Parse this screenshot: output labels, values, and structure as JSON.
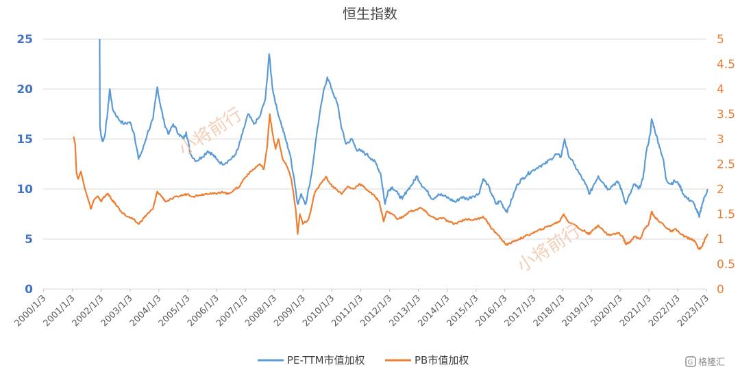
{
  "chart_data": {
    "type": "line",
    "title": "恒生指数",
    "x_ticks": [
      "2000/1/3",
      "2001/1/3",
      "2002/1/3",
      "2003/1/3",
      "2004/1/3",
      "2005/1/3",
      "2006/1/3",
      "2007/1/3",
      "2008/1/3",
      "2009/1/3",
      "2010/1/3",
      "2011/1/3",
      "2012/1/3",
      "2013/1/3",
      "2014/1/3",
      "2015/1/3",
      "2016/1/3",
      "2017/1/3",
      "2018/1/3",
      "2019/1/3",
      "2020/1/3",
      "2021/1/3",
      "2022/1/3",
      "2023/1/3"
    ],
    "y_left": {
      "ticks": [
        "0",
        "5",
        "10",
        "15",
        "20",
        "25"
      ],
      "range": [
        0,
        25
      ]
    },
    "y_right": {
      "ticks": [
        "0",
        "0.5",
        "1",
        "1.5",
        "2",
        "2.5",
        "3",
        "3.5",
        "4",
        "4.5",
        "5"
      ],
      "range": [
        0,
        5
      ]
    },
    "grid": "horizontal",
    "legend_position": "bottom",
    "series": [
      {
        "name": "PE-TTM市值加权",
        "axis": "left",
        "color": "#5b9bd5",
        "points": [
          [
            2001.95,
            25.0
          ],
          [
            2001.96,
            16.3
          ],
          [
            2002.0,
            15.3
          ],
          [
            2002.05,
            14.8
          ],
          [
            2002.12,
            15.2
          ],
          [
            2002.22,
            17.5
          ],
          [
            2002.3,
            20.0
          ],
          [
            2002.4,
            18.0
          ],
          [
            2002.6,
            17.0
          ],
          [
            2002.8,
            16.5
          ],
          [
            2003.0,
            16.7
          ],
          [
            2003.15,
            15.5
          ],
          [
            2003.3,
            13.0
          ],
          [
            2003.45,
            14.0
          ],
          [
            2003.6,
            15.5
          ],
          [
            2003.8,
            17.0
          ],
          [
            2003.95,
            20.2
          ],
          [
            2004.05,
            18.5
          ],
          [
            2004.2,
            16.5
          ],
          [
            2004.35,
            15.5
          ],
          [
            2004.5,
            16.5
          ],
          [
            2004.7,
            15.5
          ],
          [
            2004.85,
            15.0
          ],
          [
            2004.95,
            15.7
          ],
          [
            2005.1,
            13.5
          ],
          [
            2005.3,
            12.8
          ],
          [
            2005.5,
            13.2
          ],
          [
            2005.7,
            13.8
          ],
          [
            2005.85,
            13.5
          ],
          [
            2006.0,
            13.0
          ],
          [
            2006.2,
            12.5
          ],
          [
            2006.4,
            12.8
          ],
          [
            2006.6,
            13.2
          ],
          [
            2006.75,
            14.0
          ],
          [
            2006.9,
            15.5
          ],
          [
            2007.1,
            17.5
          ],
          [
            2007.3,
            16.5
          ],
          [
            2007.5,
            17.2
          ],
          [
            2007.7,
            19.0
          ],
          [
            2007.83,
            23.5
          ],
          [
            2007.95,
            20.0
          ],
          [
            2008.1,
            18.0
          ],
          [
            2008.25,
            16.5
          ],
          [
            2008.4,
            15.0
          ],
          [
            2008.55,
            13.5
          ],
          [
            2008.7,
            11.0
          ],
          [
            2008.82,
            8.5
          ],
          [
            2008.95,
            9.5
          ],
          [
            2009.1,
            8.5
          ],
          [
            2009.3,
            11.5
          ],
          [
            2009.5,
            16.0
          ],
          [
            2009.7,
            19.5
          ],
          [
            2009.85,
            21.2
          ],
          [
            2010.0,
            20.0
          ],
          [
            2010.2,
            18.5
          ],
          [
            2010.35,
            16.0
          ],
          [
            2010.5,
            14.5
          ],
          [
            2010.7,
            15.0
          ],
          [
            2010.85,
            14.0
          ],
          [
            2011.0,
            13.8
          ],
          [
            2011.2,
            13.5
          ],
          [
            2011.4,
            13.0
          ],
          [
            2011.55,
            12.5
          ],
          [
            2011.7,
            11.5
          ],
          [
            2011.85,
            8.5
          ],
          [
            2011.95,
            9.8
          ],
          [
            2012.1,
            10.2
          ],
          [
            2012.3,
            9.5
          ],
          [
            2012.45,
            9.0
          ],
          [
            2012.6,
            9.8
          ],
          [
            2012.8,
            10.5
          ],
          [
            2012.95,
            11.3
          ],
          [
            2013.1,
            10.5
          ],
          [
            2013.3,
            9.8
          ],
          [
            2013.5,
            9.0
          ],
          [
            2013.7,
            9.5
          ],
          [
            2013.9,
            9.3
          ],
          [
            2014.1,
            9.0
          ],
          [
            2014.3,
            8.7
          ],
          [
            2014.5,
            9.2
          ],
          [
            2014.7,
            9.0
          ],
          [
            2014.9,
            9.3
          ],
          [
            2015.1,
            9.5
          ],
          [
            2015.25,
            11.0
          ],
          [
            2015.4,
            10.5
          ],
          [
            2015.55,
            9.5
          ],
          [
            2015.7,
            8.5
          ],
          [
            2015.85,
            8.8
          ],
          [
            2016.0,
            8.0
          ],
          [
            2016.1,
            7.8
          ],
          [
            2016.25,
            9.0
          ],
          [
            2016.45,
            10.5
          ],
          [
            2016.6,
            11.0
          ],
          [
            2016.8,
            11.5
          ],
          [
            2016.95,
            11.8
          ],
          [
            2017.2,
            12.3
          ],
          [
            2017.4,
            12.5
          ],
          [
            2017.6,
            13.0
          ],
          [
            2017.8,
            13.5
          ],
          [
            2017.95,
            13.2
          ],
          [
            2018.08,
            15.0
          ],
          [
            2018.2,
            13.5
          ],
          [
            2018.4,
            12.5
          ],
          [
            2018.6,
            11.5
          ],
          [
            2018.8,
            10.5
          ],
          [
            2018.95,
            9.5
          ],
          [
            2019.1,
            10.5
          ],
          [
            2019.25,
            11.3
          ],
          [
            2019.45,
            10.5
          ],
          [
            2019.6,
            10.0
          ],
          [
            2019.8,
            10.5
          ],
          [
            2019.95,
            10.7
          ],
          [
            2020.1,
            9.5
          ],
          [
            2020.2,
            8.5
          ],
          [
            2020.35,
            9.5
          ],
          [
            2020.5,
            10.5
          ],
          [
            2020.65,
            10.0
          ],
          [
            2020.8,
            11.0
          ],
          [
            2020.9,
            13.5
          ],
          [
            2021.05,
            15.5
          ],
          [
            2021.1,
            17.0
          ],
          [
            2021.2,
            16.0
          ],
          [
            2021.35,
            14.5
          ],
          [
            2021.5,
            13.0
          ],
          [
            2021.6,
            11.0
          ],
          [
            2021.75,
            10.5
          ],
          [
            2021.9,
            10.8
          ],
          [
            2022.05,
            10.5
          ],
          [
            2022.2,
            9.5
          ],
          [
            2022.35,
            9.0
          ],
          [
            2022.5,
            8.8
          ],
          [
            2022.65,
            8.0
          ],
          [
            2022.75,
            7.2
          ],
          [
            2022.85,
            8.5
          ],
          [
            2022.95,
            9.3
          ],
          [
            2023.05,
            10.0
          ]
        ]
      },
      {
        "name": "PB市值加权",
        "axis": "right",
        "color": "#ed7d31",
        "points": [
          [
            2001.05,
            3.05
          ],
          [
            2001.1,
            2.9
          ],
          [
            2001.15,
            2.3
          ],
          [
            2001.2,
            2.2
          ],
          [
            2001.3,
            2.35
          ],
          [
            2001.4,
            2.1
          ],
          [
            2001.55,
            1.8
          ],
          [
            2001.65,
            1.6
          ],
          [
            2001.75,
            1.78
          ],
          [
            2001.9,
            1.85
          ],
          [
            2002.0,
            1.75
          ],
          [
            2002.1,
            1.85
          ],
          [
            2002.25,
            1.9
          ],
          [
            2002.35,
            1.8
          ],
          [
            2002.5,
            1.7
          ],
          [
            2002.7,
            1.55
          ],
          [
            2002.9,
            1.45
          ],
          [
            2003.1,
            1.4
          ],
          [
            2003.3,
            1.3
          ],
          [
            2003.45,
            1.4
          ],
          [
            2003.6,
            1.5
          ],
          [
            2003.8,
            1.6
          ],
          [
            2003.95,
            1.95
          ],
          [
            2004.1,
            1.85
          ],
          [
            2004.25,
            1.75
          ],
          [
            2004.45,
            1.8
          ],
          [
            2004.65,
            1.85
          ],
          [
            2004.85,
            1.88
          ],
          [
            2005.0,
            1.9
          ],
          [
            2005.2,
            1.85
          ],
          [
            2005.4,
            1.88
          ],
          [
            2005.6,
            1.9
          ],
          [
            2005.8,
            1.92
          ],
          [
            2006.0,
            1.9
          ],
          [
            2006.2,
            1.95
          ],
          [
            2006.4,
            1.9
          ],
          [
            2006.6,
            1.98
          ],
          [
            2006.8,
            2.05
          ],
          [
            2006.95,
            2.2
          ],
          [
            2007.1,
            2.3
          ],
          [
            2007.3,
            2.4
          ],
          [
            2007.5,
            2.5
          ],
          [
            2007.65,
            2.4
          ],
          [
            2007.75,
            2.8
          ],
          [
            2007.85,
            3.5
          ],
          [
            2007.95,
            3.1
          ],
          [
            2008.05,
            2.8
          ],
          [
            2008.15,
            3.0
          ],
          [
            2008.3,
            2.6
          ],
          [
            2008.45,
            2.45
          ],
          [
            2008.6,
            2.2
          ],
          [
            2008.75,
            1.6
          ],
          [
            2008.82,
            1.1
          ],
          [
            2008.9,
            1.5
          ],
          [
            2009.0,
            1.3
          ],
          [
            2009.2,
            1.4
          ],
          [
            2009.4,
            1.9
          ],
          [
            2009.6,
            2.1
          ],
          [
            2009.8,
            2.25
          ],
          [
            2009.95,
            2.1
          ],
          [
            2010.15,
            2.0
          ],
          [
            2010.35,
            1.9
          ],
          [
            2010.55,
            2.05
          ],
          [
            2010.75,
            2.0
          ],
          [
            2010.95,
            2.1
          ],
          [
            2011.1,
            2.05
          ],
          [
            2011.3,
            1.95
          ],
          [
            2011.5,
            1.85
          ],
          [
            2011.65,
            1.75
          ],
          [
            2011.8,
            1.35
          ],
          [
            2011.9,
            1.55
          ],
          [
            2012.1,
            1.5
          ],
          [
            2012.3,
            1.4
          ],
          [
            2012.5,
            1.45
          ],
          [
            2012.7,
            1.55
          ],
          [
            2012.9,
            1.58
          ],
          [
            2013.1,
            1.62
          ],
          [
            2013.25,
            1.55
          ],
          [
            2013.45,
            1.45
          ],
          [
            2013.65,
            1.4
          ],
          [
            2013.85,
            1.42
          ],
          [
            2014.05,
            1.35
          ],
          [
            2014.25,
            1.3
          ],
          [
            2014.45,
            1.35
          ],
          [
            2014.65,
            1.4
          ],
          [
            2014.85,
            1.38
          ],
          [
            2015.05,
            1.4
          ],
          [
            2015.25,
            1.45
          ],
          [
            2015.4,
            1.35
          ],
          [
            2015.55,
            1.2
          ],
          [
            2015.75,
            1.1
          ],
          [
            2015.95,
            0.95
          ],
          [
            2016.1,
            0.88
          ],
          [
            2016.3,
            0.95
          ],
          [
            2016.5,
            1.0
          ],
          [
            2016.7,
            1.05
          ],
          [
            2016.9,
            1.1
          ],
          [
            2017.1,
            1.15
          ],
          [
            2017.3,
            1.2
          ],
          [
            2017.5,
            1.25
          ],
          [
            2017.7,
            1.3
          ],
          [
            2017.9,
            1.35
          ],
          [
            2018.05,
            1.5
          ],
          [
            2018.2,
            1.35
          ],
          [
            2018.4,
            1.3
          ],
          [
            2018.6,
            1.2
          ],
          [
            2018.8,
            1.15
          ],
          [
            2018.95,
            1.1
          ],
          [
            2019.1,
            1.2
          ],
          [
            2019.25,
            1.28
          ],
          [
            2019.45,
            1.15
          ],
          [
            2019.6,
            1.08
          ],
          [
            2019.8,
            1.1
          ],
          [
            2019.95,
            1.12
          ],
          [
            2020.1,
            1.05
          ],
          [
            2020.2,
            0.9
          ],
          [
            2020.35,
            0.95
          ],
          [
            2020.5,
            1.05
          ],
          [
            2020.7,
            1.0
          ],
          [
            2020.85,
            1.2
          ],
          [
            2021.0,
            1.3
          ],
          [
            2021.1,
            1.55
          ],
          [
            2021.2,
            1.45
          ],
          [
            2021.35,
            1.35
          ],
          [
            2021.5,
            1.3
          ],
          [
            2021.65,
            1.2
          ],
          [
            2021.8,
            1.15
          ],
          [
            2021.95,
            1.2
          ],
          [
            2022.1,
            1.1
          ],
          [
            2022.25,
            1.05
          ],
          [
            2022.45,
            1.0
          ],
          [
            2022.6,
            0.95
          ],
          [
            2022.75,
            0.8
          ],
          [
            2022.85,
            0.85
          ],
          [
            2022.95,
            1.0
          ],
          [
            2023.05,
            1.1
          ]
        ]
      }
    ]
  },
  "watermark": "小将前行",
  "logo": {
    "text": "格隆汇"
  }
}
